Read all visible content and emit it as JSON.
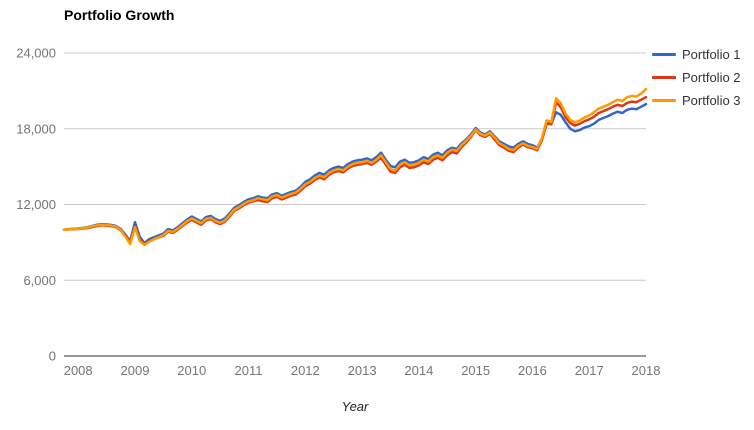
{
  "title": "Portfolio Growth",
  "colors": {
    "portfolio1": "#3366CC",
    "portfolio2": "#DC3912",
    "portfolio3": "#FF9900",
    "gridline": "#cccccc",
    "axis_line": "#333333",
    "tick_text": "#757575",
    "legend_text": "#333333",
    "title_text": "#000000"
  },
  "chart_data": {
    "type": "line",
    "title": "Portfolio Growth",
    "xlabel": "Year",
    "ylabel": "",
    "grid": true,
    "legend_position": "right",
    "ylim": [
      0,
      24000
    ],
    "y_ticks": [
      0,
      6000,
      12000,
      18000,
      24000
    ],
    "y_tick_labels": [
      "0",
      "6,000",
      "12,000",
      "18,000",
      "24,000"
    ],
    "x_ticks": [
      2008,
      2009,
      2010,
      2011,
      2012,
      2013,
      2014,
      2015,
      2016,
      2017,
      2018
    ],
    "x_start": 2007.75,
    "x_step": 0.0833333,
    "x_unit": "year (monthly points)",
    "initial_value": 10000,
    "series": [
      {
        "name": "Portfolio 1",
        "color": "#3366CC",
        "values": [
          10000,
          10050,
          10080,
          10100,
          10150,
          10200,
          10300,
          10400,
          10450,
          10420,
          10380,
          10300,
          10050,
          9600,
          9100,
          10600,
          9450,
          8950,
          9250,
          9400,
          9550,
          9700,
          10050,
          9950,
          10200,
          10500,
          10800,
          11050,
          10850,
          10650,
          11000,
          11100,
          10850,
          10700,
          10900,
          11300,
          11750,
          11950,
          12200,
          12400,
          12500,
          12650,
          12550,
          12500,
          12800,
          12900,
          12700,
          12850,
          13000,
          13100,
          13400,
          13800,
          14000,
          14300,
          14500,
          14350,
          14700,
          14900,
          15000,
          14900,
          15200,
          15400,
          15500,
          15550,
          15650,
          15500,
          15750,
          16100,
          15550,
          15050,
          14950,
          15400,
          15550,
          15300,
          15350,
          15500,
          15750,
          15600,
          15950,
          16100,
          15900,
          16300,
          16500,
          16400,
          16850,
          17150,
          17550,
          18050,
          17700,
          17550,
          17800,
          17400,
          17000,
          16800,
          16600,
          16500,
          16800,
          17000,
          16800,
          16700,
          16500,
          17200,
          18500,
          18400,
          19300,
          19100,
          18500,
          18000,
          17800,
          17900,
          18100,
          18200,
          18400,
          18700,
          18850,
          19000,
          19200,
          19350,
          19250,
          19500,
          19600,
          19550,
          19750,
          19950
        ]
      },
      {
        "name": "Portfolio 2",
        "color": "#DC3912",
        "values": [
          10000,
          10030,
          10050,
          10060,
          10100,
          10130,
          10220,
          10300,
          10350,
          10330,
          10280,
          10200,
          9950,
          9500,
          9000,
          10250,
          9200,
          8850,
          9100,
          9250,
          9400,
          9520,
          9850,
          9750,
          10000,
          10300,
          10570,
          10780,
          10580,
          10400,
          10750,
          10850,
          10600,
          10450,
          10650,
          11050,
          11500,
          11700,
          11950,
          12150,
          12250,
          12350,
          12250,
          12200,
          12500,
          12600,
          12400,
          12550,
          12700,
          12800,
          13100,
          13450,
          13650,
          13950,
          14150,
          14000,
          14350,
          14550,
          14650,
          14550,
          14850,
          15050,
          15150,
          15200,
          15300,
          15150,
          15400,
          15700,
          15150,
          14600,
          14500,
          14950,
          15150,
          14900,
          14950,
          15100,
          15350,
          15200,
          15550,
          15700,
          15500,
          15900,
          16150,
          16050,
          16550,
          16900,
          17350,
          17900,
          17500,
          17350,
          17600,
          17150,
          16700,
          16500,
          16250,
          16150,
          16500,
          16750,
          16550,
          16450,
          16300,
          17100,
          18400,
          18350,
          20100,
          19700,
          18900,
          18450,
          18250,
          18400,
          18600,
          18750,
          18950,
          19250,
          19400,
          19550,
          19750,
          19900,
          19800,
          20050,
          20150,
          20100,
          20300,
          20500
        ]
      },
      {
        "name": "Portfolio 3",
        "color": "#FF9900",
        "values": [
          10000,
          10040,
          10070,
          10080,
          10130,
          10170,
          10270,
          10350,
          10400,
          10380,
          10330,
          10250,
          9980,
          9450,
          8870,
          10200,
          9100,
          8800,
          9050,
          9250,
          9420,
          9580,
          9920,
          9830,
          10080,
          10380,
          10670,
          10900,
          10700,
          10520,
          10850,
          10950,
          10700,
          10550,
          10750,
          11150,
          11600,
          11800,
          12050,
          12250,
          12350,
          12500,
          12400,
          12350,
          12650,
          12750,
          12550,
          12700,
          12850,
          12950,
          13250,
          13600,
          13800,
          14100,
          14300,
          14150,
          14500,
          14700,
          14800,
          14700,
          15000,
          15200,
          15300,
          15350,
          15450,
          15300,
          15550,
          15900,
          15350,
          14800,
          14700,
          15150,
          15350,
          15100,
          15150,
          15300,
          15550,
          15400,
          15750,
          15900,
          15700,
          16100,
          16350,
          16250,
          16700,
          17050,
          17450,
          17950,
          17600,
          17450,
          17700,
          17300,
          16850,
          16650,
          16400,
          16300,
          16650,
          16850,
          16650,
          16550,
          16400,
          17250,
          18650,
          18550,
          20400,
          20000,
          19200,
          18700,
          18500,
          18650,
          18900,
          19050,
          19300,
          19600,
          19750,
          19900,
          20100,
          20300,
          20200,
          20500,
          20600,
          20550,
          20800,
          21150
        ]
      }
    ]
  }
}
